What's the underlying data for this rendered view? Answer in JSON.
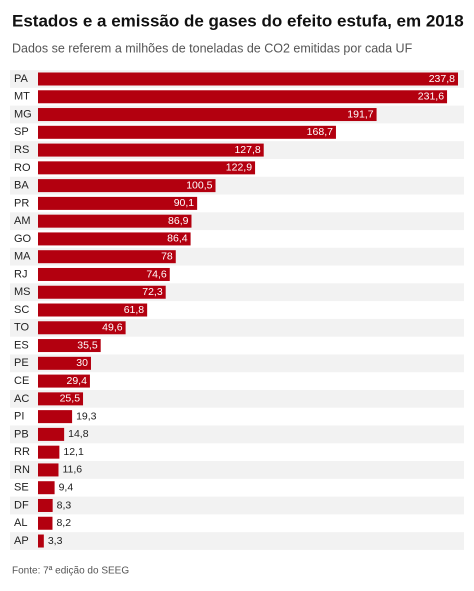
{
  "chart_data": {
    "type": "bar",
    "orientation": "horizontal",
    "title": "Estados e a emissão de gases do efeito estufa, em 2018",
    "subtitle": "Dados se referem a milhões de toneladas de CO2 emitidas por cada UF",
    "source": "Fonte: 7ª edição do SEEG",
    "color": "#b3000f",
    "categories": [
      "PA",
      "MT",
      "MG",
      "SP",
      "RS",
      "RO",
      "BA",
      "PR",
      "AM",
      "GO",
      "MA",
      "RJ",
      "MS",
      "SC",
      "TO",
      "ES",
      "PE",
      "CE",
      "AC",
      "PI",
      "PB",
      "RR",
      "RN",
      "SE",
      "DF",
      "AL",
      "AP"
    ],
    "values": [
      237.8,
      231.6,
      191.7,
      168.7,
      127.8,
      122.9,
      100.5,
      90.1,
      86.9,
      86.4,
      78,
      74.6,
      72.3,
      61.8,
      49.6,
      35.5,
      30,
      29.4,
      25.5,
      19.3,
      14.8,
      12.1,
      11.6,
      9.4,
      8.3,
      8.2,
      3.3
    ],
    "value_labels": [
      "237,8",
      "231,6",
      "191,7",
      "168,7",
      "127,8",
      "122,9",
      "100,5",
      "90,1",
      "86,9",
      "86,4",
      "78",
      "74,6",
      "72,3",
      "61,8",
      "49,6",
      "35,5",
      "30",
      "29,4",
      "25,5",
      "19,3",
      "14,8",
      "12,1",
      "11,6",
      "9,4",
      "8,3",
      "8,2",
      "3,3"
    ]
  }
}
